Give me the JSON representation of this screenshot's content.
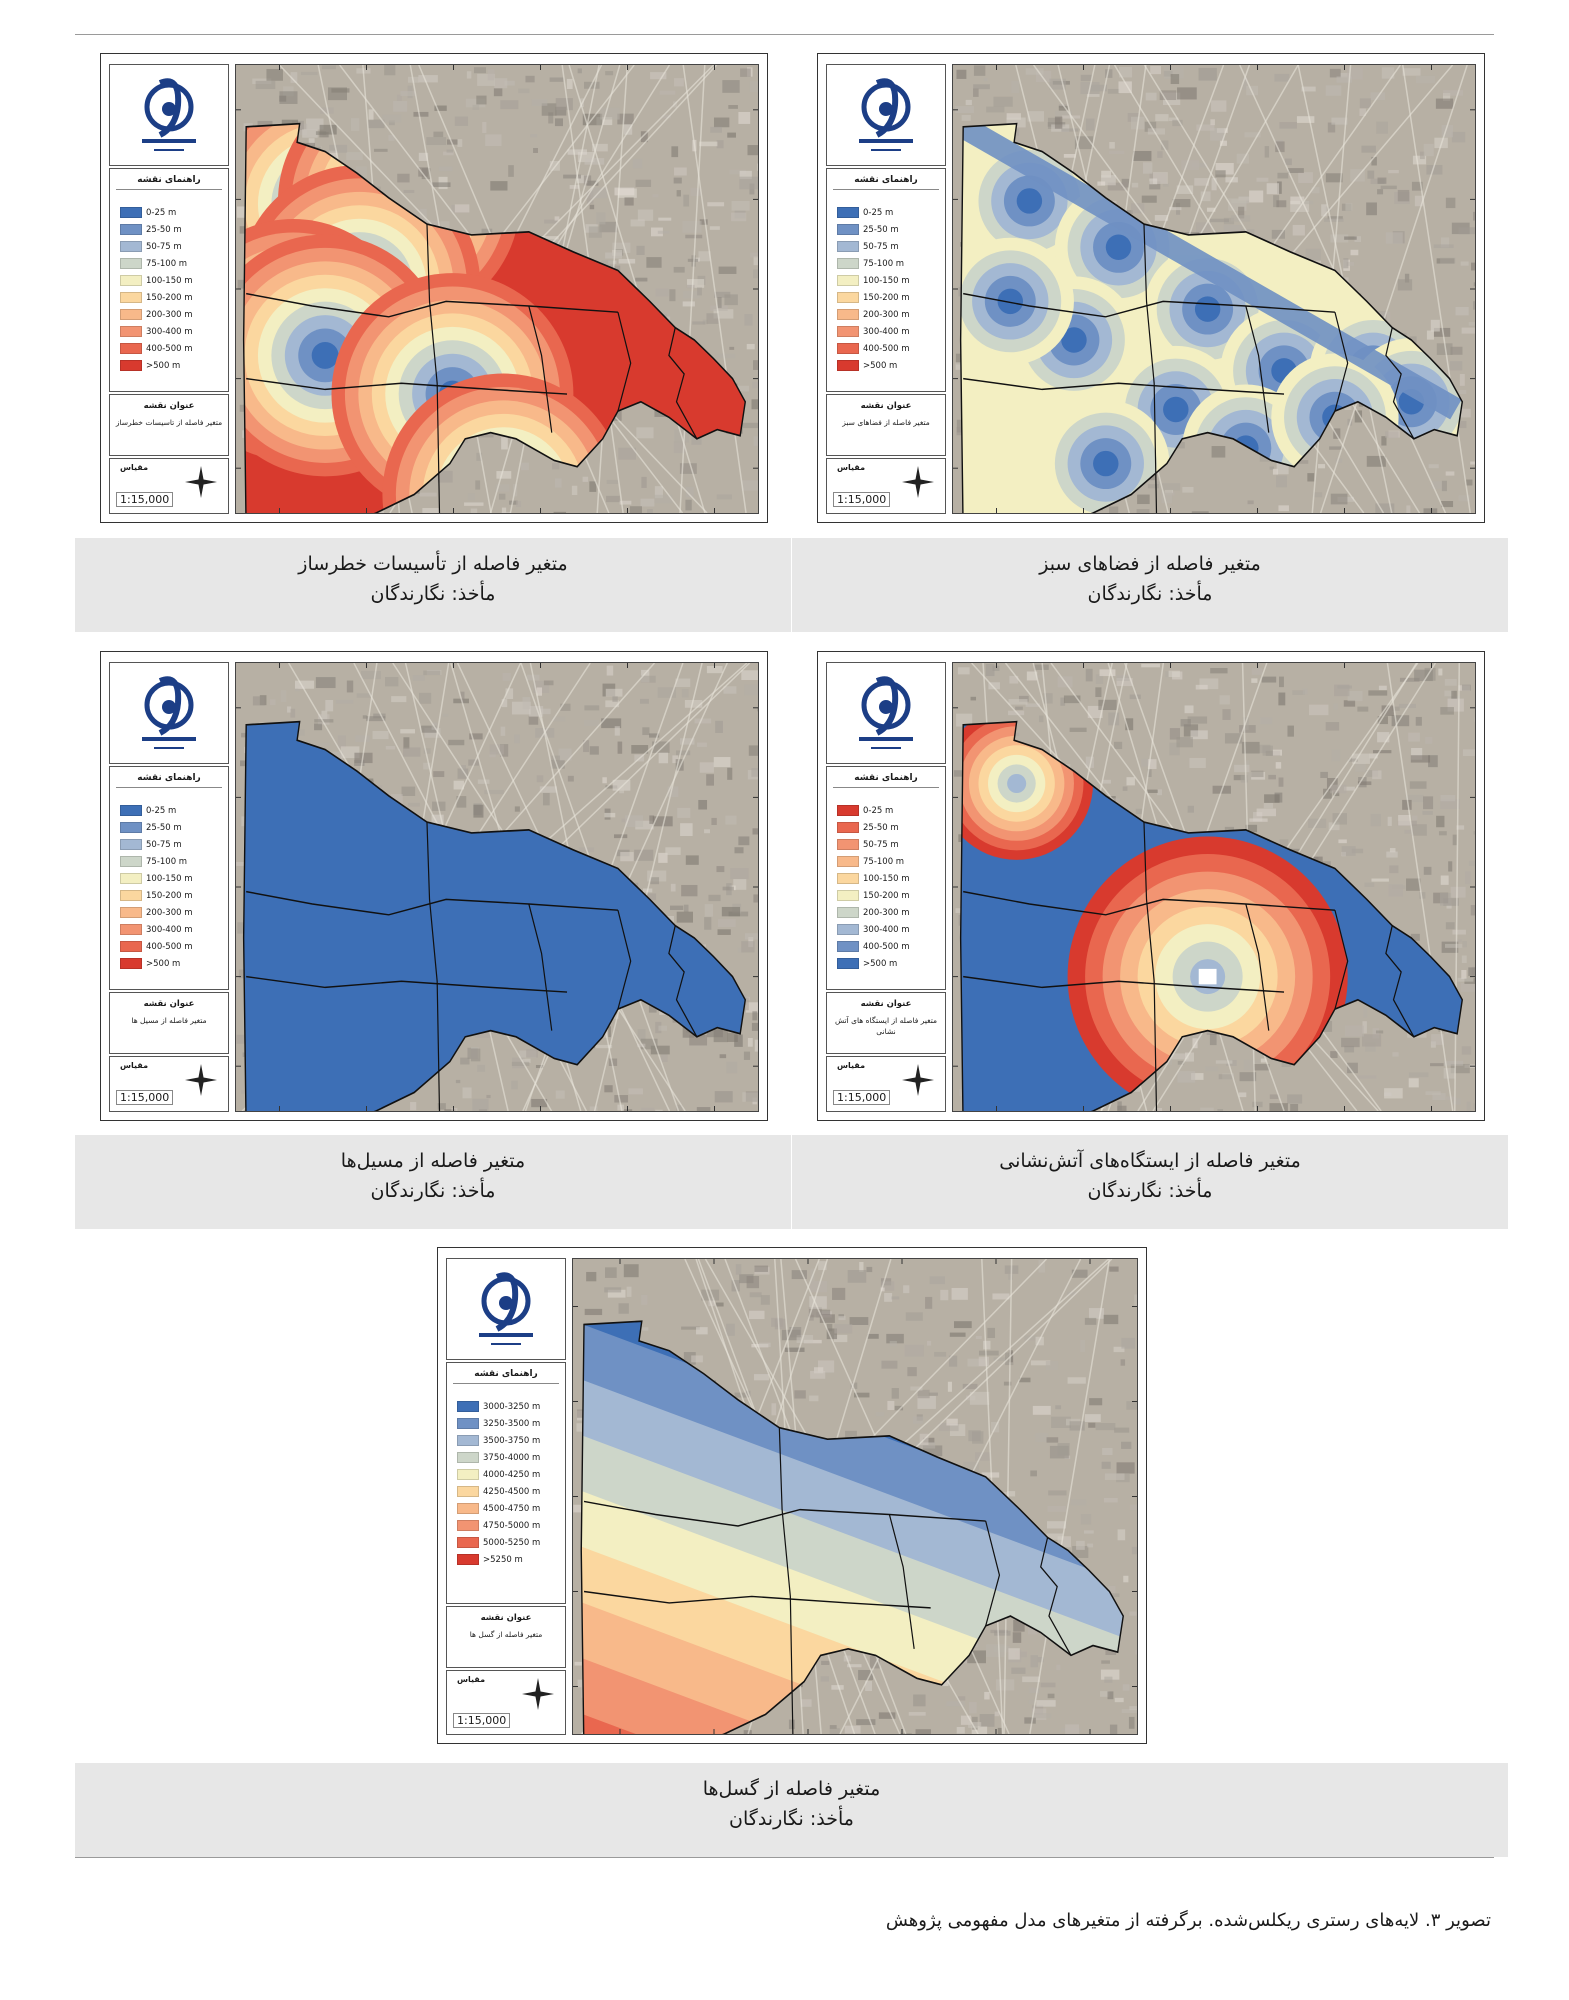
{
  "figure_caption": "تصویر ۳. لایه‌های رستری ریکلس‌شده. برگرفته از متغیرهای مدل مفهومی پژوهش",
  "panels": [
    {
      "id": "hazard",
      "legend_title": "راهنمای نقشه",
      "legend": [
        {
          "label": "0-25 m",
          "color": "#3d6fb6"
        },
        {
          "label": "25-50 m",
          "color": "#6f91c4"
        },
        {
          "label": "50-75 m",
          "color": "#a3b8d3"
        },
        {
          "label": "75-100 m",
          "color": "#cdd6c9"
        },
        {
          "label": "100-150 m",
          "color": "#f3efc2"
        },
        {
          "label": "150-200 m",
          "color": "#fbd79f"
        },
        {
          "label": "200-300 m",
          "color": "#f8b98a"
        },
        {
          "label": "300-400 m",
          "color": "#f29472"
        },
        {
          "label": "400-500 m",
          "color": "#e9674f"
        },
        {
          "label": ">500 m",
          "color": "#d83a2e"
        }
      ],
      "map_title_head": "عنوان نقشه",
      "map_title": "متغیر فاصله از تاسیسات خطرساز",
      "scale_head": "مقیاس",
      "scale": "1:15,000",
      "caption_title": "متغیر فاصله از تأسیسات خطرساز",
      "caption_source": "مأخذ: نگارندگان"
    },
    {
      "id": "green",
      "legend_title": "راهنمای نقشه",
      "legend": [
        {
          "label": "0-25 m",
          "color": "#3d6fb6"
        },
        {
          "label": "25-50 m",
          "color": "#6f91c4"
        },
        {
          "label": "50-75 m",
          "color": "#a3b8d3"
        },
        {
          "label": "75-100 m",
          "color": "#cdd6c9"
        },
        {
          "label": "100-150 m",
          "color": "#f3efc2"
        },
        {
          "label": "150-200 m",
          "color": "#fbd79f"
        },
        {
          "label": "200-300 m",
          "color": "#f8b98a"
        },
        {
          "label": "300-400 m",
          "color": "#f29472"
        },
        {
          "label": "400-500 m",
          "color": "#e9674f"
        },
        {
          "label": ">500 m",
          "color": "#d83a2e"
        }
      ],
      "map_title_head": "عنوان نقشه",
      "map_title": "متغیر فاصله از فضاهای سبز",
      "scale_head": "مقیاس",
      "scale": "1:15,000",
      "caption_title": "متغیر فاصله از فضاهای سبز",
      "caption_source": "مأخذ: نگارندگان"
    },
    {
      "id": "flood",
      "legend_title": "راهنمای نقشه",
      "legend": [
        {
          "label": "0-25 m",
          "color": "#3d6fb6"
        },
        {
          "label": "25-50 m",
          "color": "#6f91c4"
        },
        {
          "label": "50-75 m",
          "color": "#a3b8d3"
        },
        {
          "label": "75-100 m",
          "color": "#cdd6c9"
        },
        {
          "label": "100-150 m",
          "color": "#f3efc2"
        },
        {
          "label": "150-200 m",
          "color": "#fbd79f"
        },
        {
          "label": "200-300 m",
          "color": "#f8b98a"
        },
        {
          "label": "300-400 m",
          "color": "#f29472"
        },
        {
          "label": "400-500 m",
          "color": "#e9674f"
        },
        {
          "label": ">500 m",
          "color": "#d83a2e"
        }
      ],
      "map_title_head": "عنوان نقشه",
      "map_title": "متغیر فاصله از مسیل ها",
      "scale_head": "مقیاس",
      "scale": "1:15,000",
      "caption_title": "متغیر فاصله از مسیل‌ها",
      "caption_source": "مأخذ: نگارندگان"
    },
    {
      "id": "fire",
      "legend_title": "راهنمای نقشه",
      "legend": [
        {
          "label": "0-25 m",
          "color": "#d83a2e"
        },
        {
          "label": "25-50 m",
          "color": "#e9674f"
        },
        {
          "label": "50-75 m",
          "color": "#f29472"
        },
        {
          "label": "75-100 m",
          "color": "#f8b98a"
        },
        {
          "label": "100-150 m",
          "color": "#fbd79f"
        },
        {
          "label": "150-200 m",
          "color": "#f3efc2"
        },
        {
          "label": "200-300 m",
          "color": "#cdd6c9"
        },
        {
          "label": "300-400 m",
          "color": "#a3b8d3"
        },
        {
          "label": "400-500 m",
          "color": "#6f91c4"
        },
        {
          "label": ">500 m",
          "color": "#3d6fb6"
        }
      ],
      "map_title_head": "عنوان نقشه",
      "map_title": "متغیر فاصله از ایستگاه های آتش نشانی",
      "scale_head": "مقیاس",
      "scale": "1:15,000",
      "caption_title": "متغیر فاصله از ایستگاه‌های آتش‌نشانی",
      "caption_source": "مأخذ: نگارندگان"
    },
    {
      "id": "fault",
      "legend_title": "راهنمای نقشه",
      "legend": [
        {
          "label": "3000-3250 m",
          "color": "#3d6fb6"
        },
        {
          "label": "3250-3500 m",
          "color": "#6f91c4"
        },
        {
          "label": "3500-3750 m",
          "color": "#a3b8d3"
        },
        {
          "label": "3750-4000 m",
          "color": "#cdd6c9"
        },
        {
          "label": "4000-4250 m",
          "color": "#f3efc2"
        },
        {
          "label": "4250-4500 m",
          "color": "#fbd79f"
        },
        {
          "label": "4500-4750 m",
          "color": "#f8b98a"
        },
        {
          "label": "4750-5000 m",
          "color": "#f29472"
        },
        {
          "label": "5000-5250 m",
          "color": "#e9674f"
        },
        {
          "label": ">5250 m",
          "color": "#d83a2e"
        }
      ],
      "map_title_head": "عنوان نقشه",
      "map_title": "متغیر فاصله از گسل ها",
      "scale_head": "مقیاس",
      "scale": "1:15,000",
      "caption_title": "متغیر فاصله از گسل‌ها",
      "caption_source": "مأخذ: نگارندگان"
    }
  ]
}
